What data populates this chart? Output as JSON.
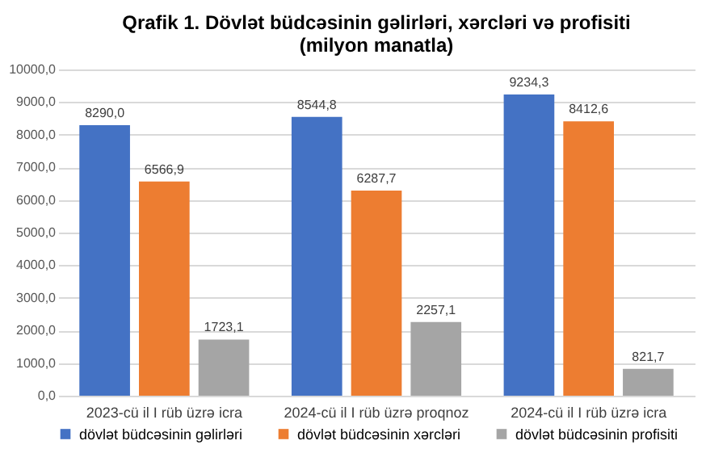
{
  "chart_data": {
    "type": "bar",
    "title": "Qrafik 1. Dövlət büdcəsinin gəlirləri, xərcləri və profisiti (milyon manatla)",
    "categories": [
      "2023-cü il I rüb üzrə icra",
      "2024-cü il I rüb üzrə proqnoz",
      "2024-cü il I rüb üzrə icra"
    ],
    "series": [
      {
        "name": "dövlət büdcəsinin gəlirləri",
        "color": "#4472c4",
        "values": [
          8290.0,
          8544.8,
          9234.3
        ],
        "value_labels": [
          "8290,0",
          "8544,8",
          "9234,3"
        ]
      },
      {
        "name": "dövlət büdcəsinin xərcləri",
        "color": "#ed7d31",
        "values": [
          6566.9,
          6287.7,
          8412.6
        ],
        "value_labels": [
          "6566,9",
          "6287,7",
          "8412,6"
        ]
      },
      {
        "name": "dövlət büdcəsinin profisiti",
        "color": "#a5a5a5",
        "values": [
          1723.1,
          2257.1,
          821.7
        ],
        "value_labels": [
          "1723,1",
          "2257,1",
          "821,7"
        ]
      }
    ],
    "ylim": [
      0,
      10000
    ],
    "yticks": [
      {
        "value": 0,
        "label": "0,0"
      },
      {
        "value": 1000,
        "label": "1000,0"
      },
      {
        "value": 2000,
        "label": "2000,0"
      },
      {
        "value": 3000,
        "label": "3000,0"
      },
      {
        "value": 4000,
        "label": "4000,0"
      },
      {
        "value": 5000,
        "label": "5000,0"
      },
      {
        "value": 6000,
        "label": "6000,0"
      },
      {
        "value": 7000,
        "label": "7000,0"
      },
      {
        "value": 8000,
        "label": "8000,0"
      },
      {
        "value": 9000,
        "label": "9000,0"
      },
      {
        "value": 10000,
        "label": "10000,0"
      }
    ],
    "grid": "y",
    "legend": "bottom"
  }
}
